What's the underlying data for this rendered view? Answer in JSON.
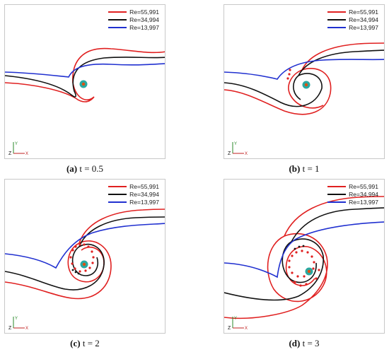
{
  "figure": {
    "legend": [
      {
        "label": "Re=55,991",
        "color": "#e02020"
      },
      {
        "label": "Re=34,994",
        "color": "#111111"
      },
      {
        "label": "Re=13,997",
        "color": "#2030d0"
      }
    ],
    "panels": [
      {
        "tag": "(a)",
        "text": " t = 0.5"
      },
      {
        "tag": "(b)",
        "text": " t = 1"
      },
      {
        "tag": "(c)",
        "text": " t = 2"
      },
      {
        "tag": "(d)",
        "text": " t = 3"
      }
    ],
    "axis_labels": {
      "y": "Y",
      "z": "Z",
      "x": "X"
    }
  }
}
